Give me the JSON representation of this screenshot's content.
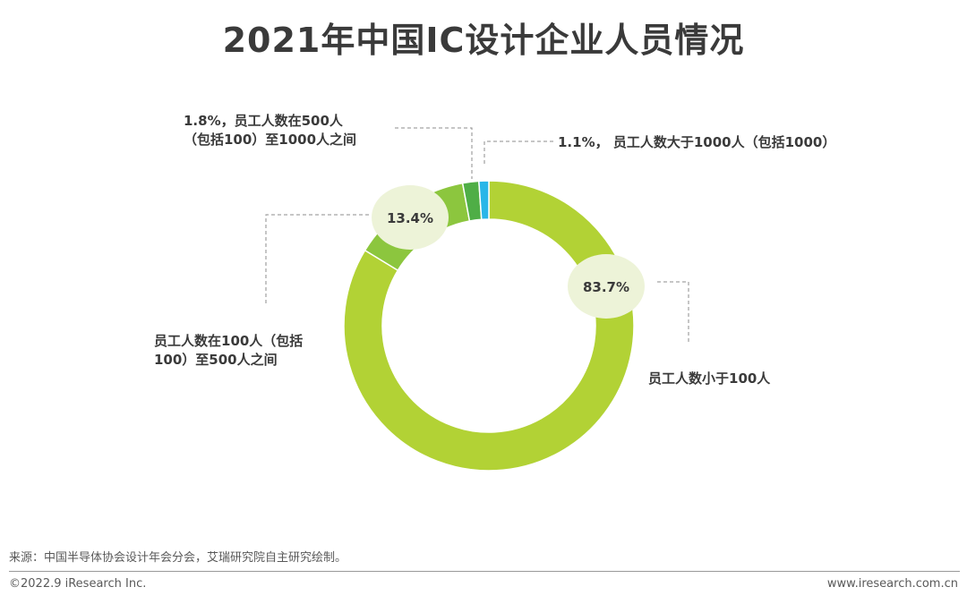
{
  "title": "2021年中国IC设计企业人员情况",
  "chart_data": {
    "type": "pie",
    "donut": true,
    "slices": [
      {
        "label_lines": [
          "员工人数小于100人"
        ],
        "value": 83.7,
        "value_label": "83.7%",
        "color": "#b2d235"
      },
      {
        "label_lines": [
          "员工人数在100人（包括",
          "100）至500人之间"
        ],
        "value": 13.4,
        "value_label": "13.4%",
        "color": "#8cc63e"
      },
      {
        "label_lines": [
          "1.8%，员工人数在500人",
          "（包括100）至1000人之间"
        ],
        "value": 1.8,
        "value_label": "",
        "color": "#4fae46"
      },
      {
        "label_lines": [
          "1.1%， 员工人数大于1000人（包括1000）"
        ],
        "value": 1.1,
        "value_label": "",
        "color": "#29b6e8"
      }
    ]
  },
  "footer": {
    "source": "来源：中国半导体协会设计年会分会，艾瑞研究院自主研究绘制。",
    "copyright": "©2022.9 iResearch Inc.",
    "website": "www.iresearch.com.cn"
  }
}
